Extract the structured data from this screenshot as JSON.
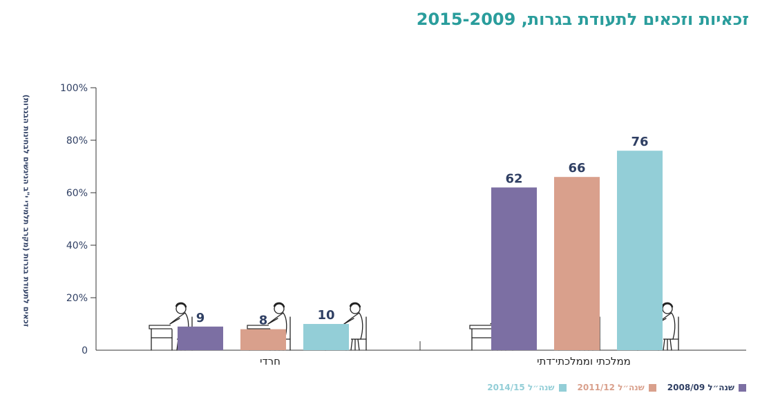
{
  "title": "זכאיות וזכאים לתעודת בגרות, 2015-2009",
  "chart_data": {
    "type": "bar",
    "ylabel": "זכאים לתעודת בגרות (מקרב תלמידי י\"ב הניגשים לבחינות הבגרות)",
    "ylim": [
      0,
      100
    ],
    "yticks": [
      "0",
      "20%",
      "40%",
      "60%",
      "80%",
      "100%"
    ],
    "categories": [
      "חרדי",
      "ממלכתי וממלכתי־דתי"
    ],
    "series": [
      {
        "name": "שנה״ל 2008/09",
        "values": [
          9,
          62
        ],
        "labels": [
          "9",
          "62"
        ]
      },
      {
        "name": "שנה״ל 2011/12",
        "values": [
          8,
          66
        ],
        "labels": [
          "8",
          "66"
        ]
      },
      {
        "name": "שנה״ל 2014/15",
        "values": [
          10,
          76
        ],
        "labels": [
          "10",
          "76"
        ]
      }
    ],
    "legend_position": "bottom-right",
    "grid": false
  },
  "colors": {
    "title": "#2a9d9c",
    "axis_text": "#2f3f63",
    "series": [
      "#7c6fa3",
      "#d9a08c",
      "#93ced7"
    ],
    "legend_text": [
      "#2f3f63",
      "#d9a08c",
      "#93ced7"
    ]
  },
  "illustration": {
    "icon": "student-at-desk-icon",
    "count": 6
  }
}
